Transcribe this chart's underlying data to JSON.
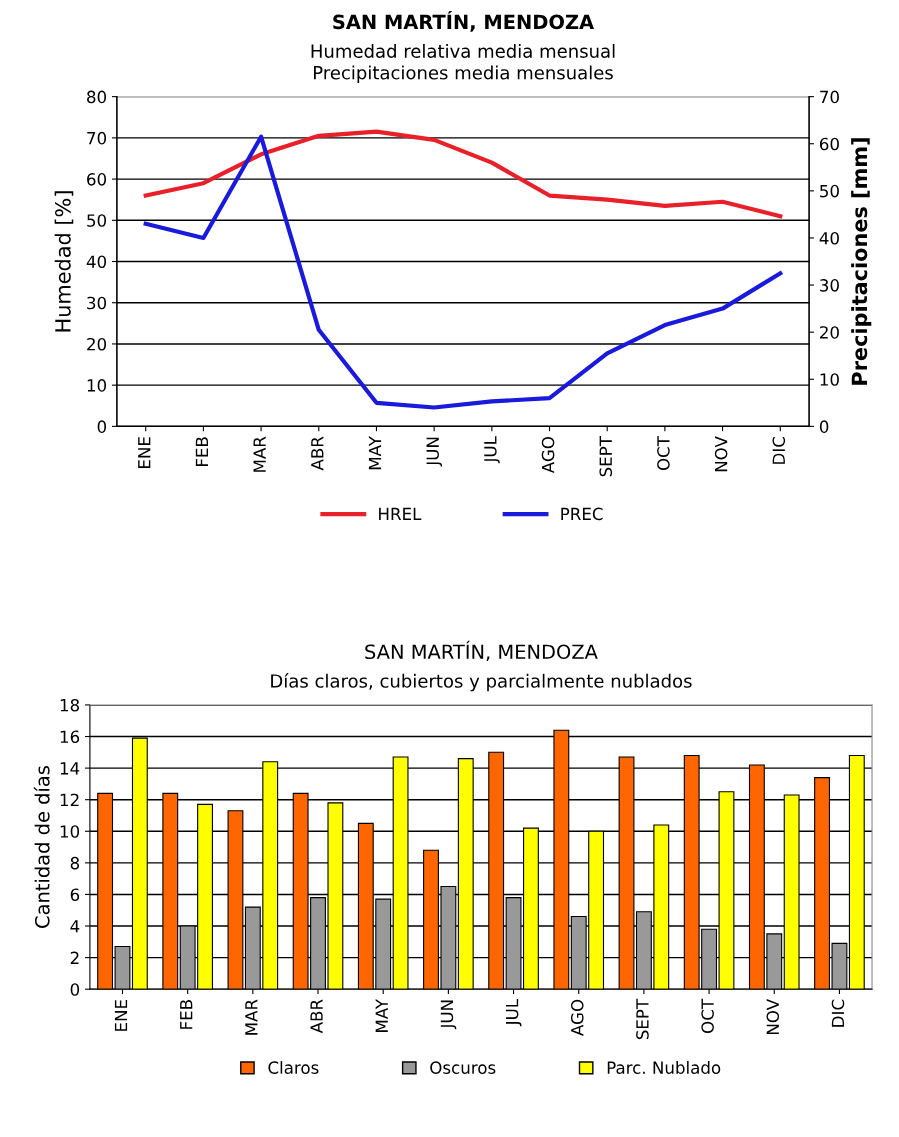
{
  "chart_data": [
    {
      "type": "line",
      "title": "SAN MARTÍN, MENDOZA",
      "subtitle": "Humedad relativa media mensual\nPrecipitaciones media mensuales",
      "ylabel": "Humedad [%]",
      "y2label": "Precipitaciones [mm]",
      "categories": [
        "ENE",
        "FEB",
        "MAR",
        "ABR",
        "MAY",
        "JUN",
        "JUL",
        "AGO",
        "SEPT",
        "OCT",
        "NOV",
        "DIC"
      ],
      "series": [
        {
          "name": "HREL",
          "color": "#e8202a",
          "values": [
            56,
            59,
            66,
            70.5,
            71.5,
            69.5,
            64,
            56,
            55,
            53.5,
            54.5,
            51
          ]
        },
        {
          "name": "PREC",
          "color": "#1a1adc",
          "axis": "y2",
          "values": [
            43,
            40,
            61.5,
            20.5,
            5,
            4,
            5.3,
            6,
            15.5,
            21.5,
            25,
            32.5
          ]
        }
      ],
      "ylim": [
        0,
        80
      ],
      "yticks": [
        0,
        10,
        20,
        30,
        40,
        50,
        60,
        70,
        80
      ],
      "y2lim": [
        0,
        70
      ],
      "y2ticks": [
        0,
        10,
        20,
        30,
        40,
        50,
        60,
        70
      ],
      "grid": "y",
      "legend": "bottom",
      "marker": "none",
      "line_style": "solid"
    },
    {
      "type": "bar",
      "title": "SAN MARTÍN, MENDOZA",
      "subtitle": "Días claros, cubiertos y parcialmente nublados",
      "ylabel": "Cantidad de días",
      "categories": [
        "ENE",
        "FEB",
        "MAR",
        "ABR",
        "MAY",
        "JUN",
        "JUL",
        "AGO",
        "SEPT",
        "OCT",
        "NOV",
        "DIC"
      ],
      "series": [
        {
          "name": "Claros",
          "color": "#ff6600",
          "values": [
            12.4,
            12.4,
            11.3,
            12.4,
            10.5,
            8.8,
            15,
            16.4,
            14.7,
            14.8,
            14.2,
            13.4
          ]
        },
        {
          "name": "Oscuros",
          "color": "#999999",
          "values": [
            2.7,
            4,
            5.2,
            5.8,
            5.7,
            6.5,
            5.8,
            4.6,
            4.9,
            3.8,
            3.5,
            2.9
          ]
        },
        {
          "name": "Parc. Nublado",
          "color": "#ffff00",
          "values": [
            15.9,
            11.7,
            14.4,
            11.8,
            14.7,
            14.6,
            10.2,
            10,
            10.4,
            12.5,
            12.3,
            14.8
          ]
        }
      ],
      "ylim": [
        0,
        18
      ],
      "yticks": [
        0,
        2,
        4,
        6,
        8,
        10,
        12,
        14,
        16,
        18
      ],
      "grid": "y",
      "legend": "bottom"
    }
  ]
}
